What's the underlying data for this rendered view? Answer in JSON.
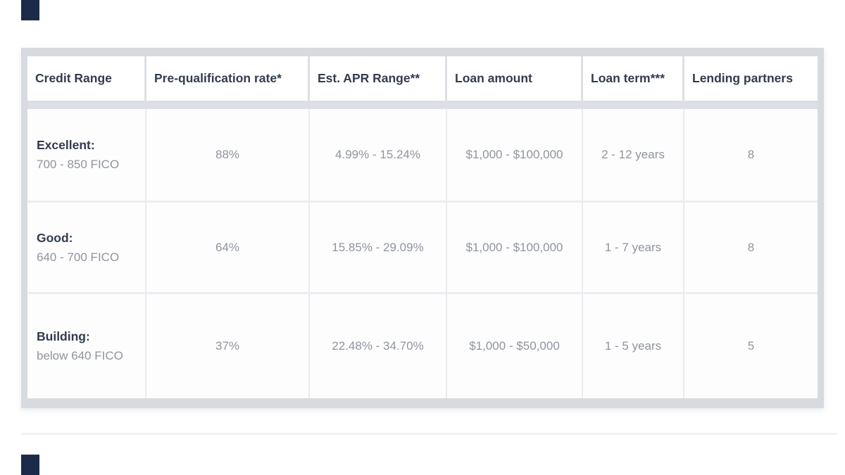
{
  "decorations": {
    "corner_mark_color": "#1d2b4a"
  },
  "colors": {
    "frame_gray": "#d7dade",
    "header_text": "#323c4d",
    "value_text": "#8f949d",
    "separator_light": "#e9ebef"
  },
  "table": {
    "columns": [
      "Credit Range",
      "Pre-qualification rate*",
      "Est. APR Range**",
      "Loan amount",
      "Loan term***",
      "Lending partners"
    ],
    "rows": [
      {
        "credit_label": "Excellent:",
        "credit_sub": "700 - 850 FICO",
        "prequal_rate": "88%",
        "apr_range": "4.99% - 15.24%",
        "loan_amount": "$1,000 - $100,000",
        "loan_term": "2 - 12 years",
        "lending_partners": "8"
      },
      {
        "credit_label": "Good:",
        "credit_sub": "640 - 700 FICO",
        "prequal_rate": "64%",
        "apr_range": "15.85% - 29.09%",
        "loan_amount": "$1,000 - $100,000",
        "loan_term": "1 - 7 years",
        "lending_partners": "8"
      },
      {
        "credit_label": "Building:",
        "credit_sub": "below 640 FICO",
        "prequal_rate": "37%",
        "apr_range": "22.48% - 34.70%",
        "loan_amount": "$1,000 - $50,000",
        "loan_term": "1 - 5 years",
        "lending_partners": "5"
      }
    ]
  }
}
